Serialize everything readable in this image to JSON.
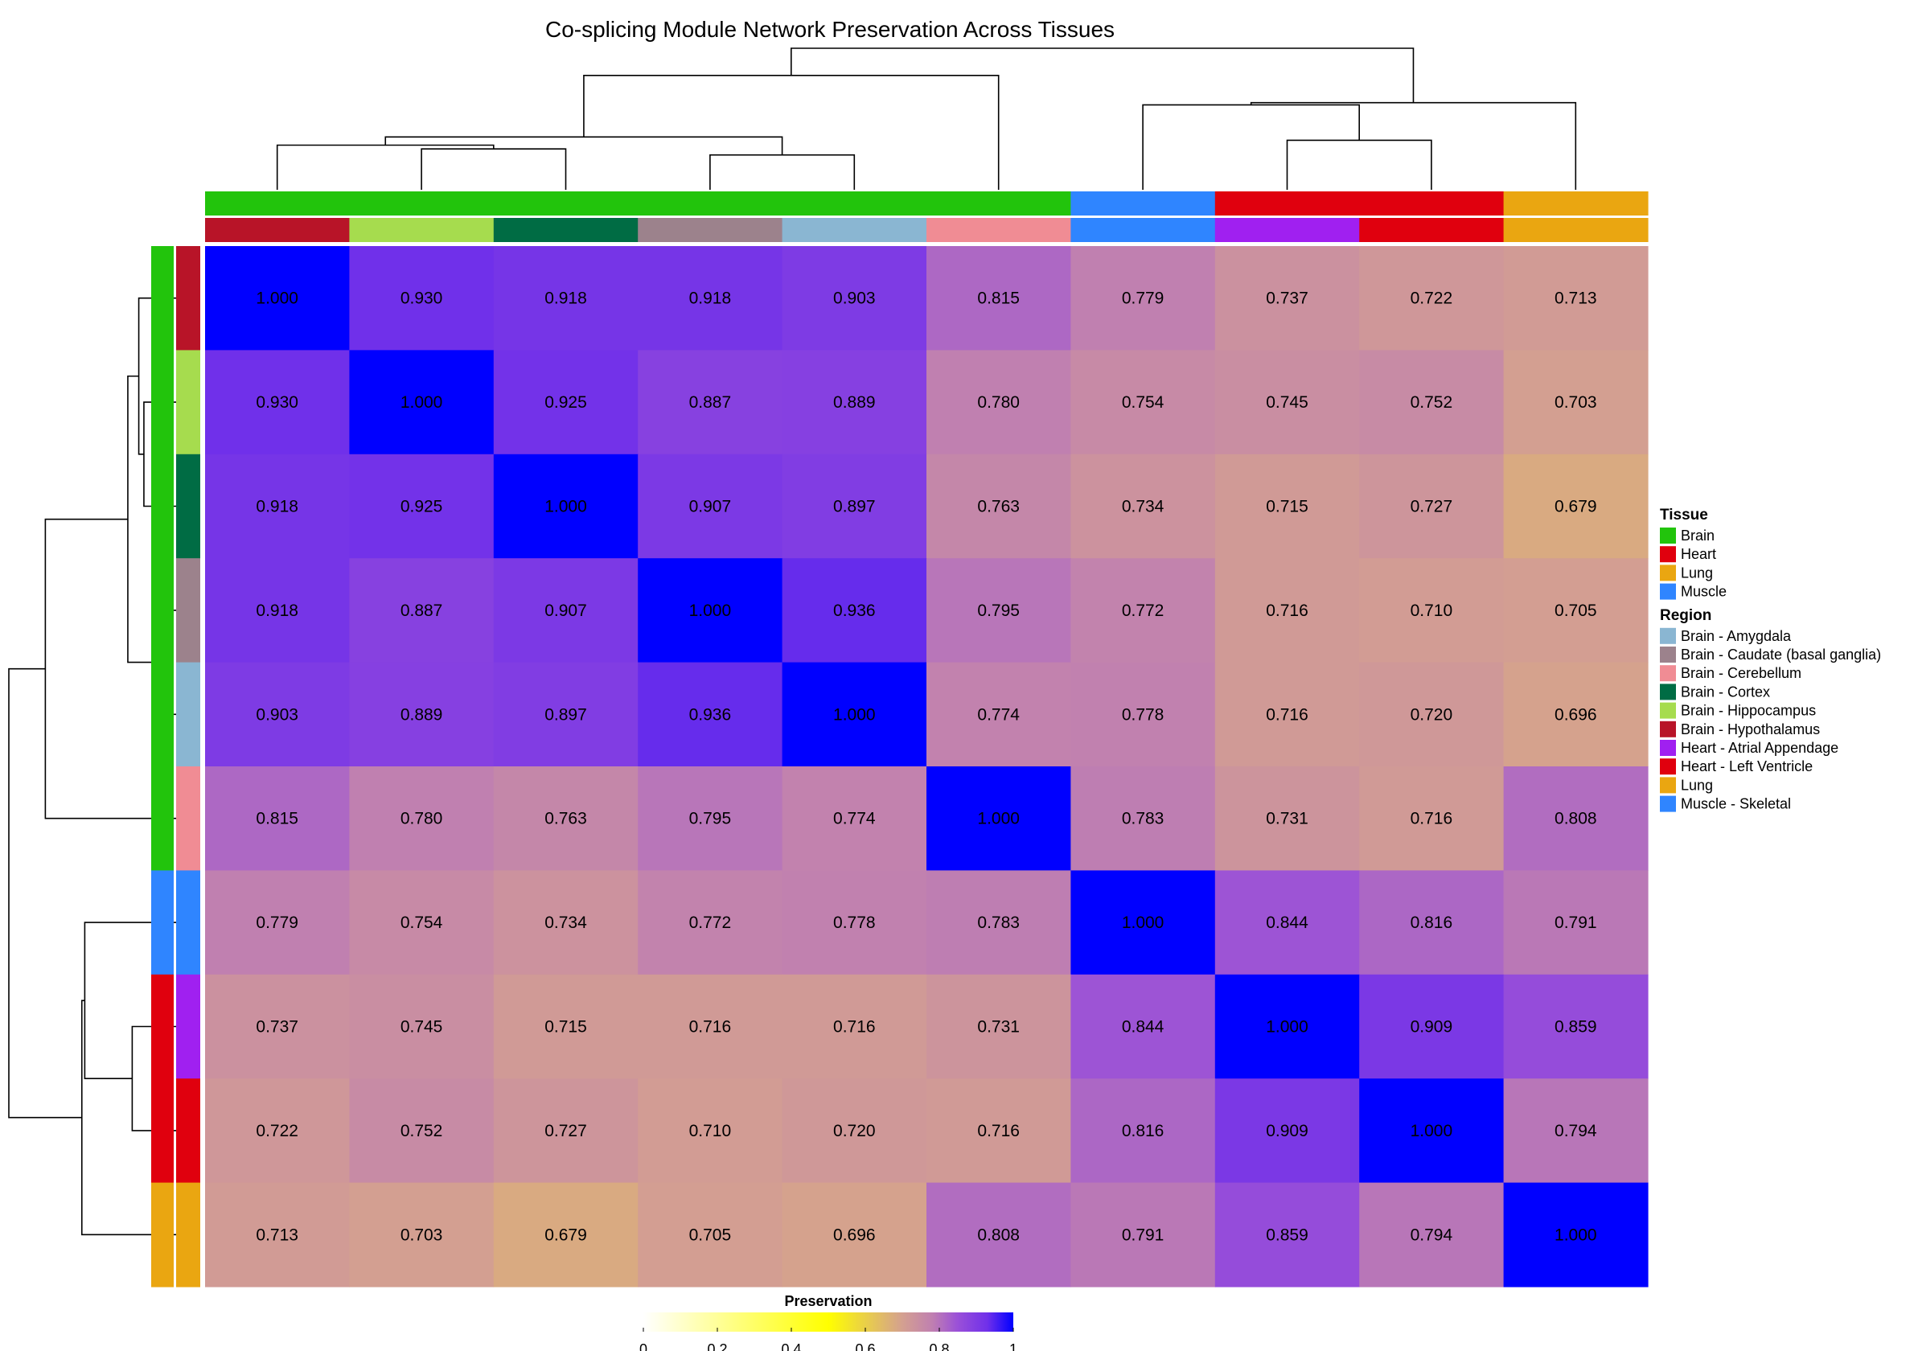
{
  "chart_data": {
    "type": "heatmap",
    "title": "Co-splicing Module Network Preservation Across Tissues",
    "row_labels": [
      "Brain - Hypothalamus",
      "Brain - Hippocampus",
      "Brain - Cortex",
      "Brain - Caudate (basal ganglia)",
      "Brain - Amygdala",
      "Brain - Cerebellum",
      "Muscle - Skeletal",
      "Heart - Atrial Appendage",
      "Heart - Left Ventricle",
      "Lung"
    ],
    "col_labels": [
      "Brain - Hypothalamus",
      "Brain - Hippocampus",
      "Brain - Cortex",
      "Brain - Caudate (basal ganglia)",
      "Brain - Amygdala",
      "Brain - Cerebellum",
      "Muscle - Skeletal",
      "Heart - Atrial Appendage",
      "Heart - Left Ventricle",
      "Lung"
    ],
    "row_tissue": [
      "Brain",
      "Brain",
      "Brain",
      "Brain",
      "Brain",
      "Brain",
      "Muscle",
      "Heart",
      "Heart",
      "Lung"
    ],
    "col_tissue": [
      "Brain",
      "Brain",
      "Brain",
      "Brain",
      "Brain",
      "Brain",
      "Muscle",
      "Heart",
      "Heart",
      "Lung"
    ],
    "values": [
      [
        1.0,
        0.93,
        0.918,
        0.918,
        0.903,
        0.815,
        0.779,
        0.737,
        0.722,
        0.713
      ],
      [
        0.93,
        1.0,
        0.925,
        0.887,
        0.889,
        0.78,
        0.754,
        0.745,
        0.752,
        0.703
      ],
      [
        0.918,
        0.925,
        1.0,
        0.907,
        0.897,
        0.763,
        0.734,
        0.715,
        0.727,
        0.679
      ],
      [
        0.918,
        0.887,
        0.907,
        1.0,
        0.936,
        0.795,
        0.772,
        0.716,
        0.71,
        0.705
      ],
      [
        0.903,
        0.889,
        0.897,
        0.936,
        1.0,
        0.774,
        0.778,
        0.716,
        0.72,
        0.696
      ],
      [
        0.815,
        0.78,
        0.763,
        0.795,
        0.774,
        1.0,
        0.783,
        0.731,
        0.716,
        0.808
      ],
      [
        0.779,
        0.754,
        0.734,
        0.772,
        0.778,
        0.783,
        1.0,
        0.844,
        0.816,
        0.791
      ],
      [
        0.737,
        0.745,
        0.715,
        0.716,
        0.716,
        0.731,
        0.844,
        1.0,
        0.909,
        0.859
      ],
      [
        0.722,
        0.752,
        0.727,
        0.71,
        0.72,
        0.716,
        0.816,
        0.909,
        1.0,
        0.794
      ],
      [
        0.713,
        0.703,
        0.679,
        0.705,
        0.696,
        0.808,
        0.791,
        0.859,
        0.794,
        1.0
      ]
    ],
    "color_scale": {
      "title": "Preservation",
      "range": [
        0,
        1
      ],
      "ticks": [
        "0",
        "0.2",
        "0.4",
        "0.6",
        "0.8",
        "1"
      ],
      "stops": [
        {
          "value": 0.0,
          "color": "#ffffff"
        },
        {
          "value": 0.5,
          "color": "#ffff00"
        },
        {
          "value": 0.7,
          "color": "#d4a090"
        },
        {
          "value": 0.78,
          "color": "#c080b0"
        },
        {
          "value": 0.85,
          "color": "#9a50d8"
        },
        {
          "value": 0.93,
          "color": "#7030ea"
        },
        {
          "value": 1.0,
          "color": "#0000ff"
        }
      ]
    },
    "legend": {
      "placement": "right",
      "tissue": {
        "title": "Tissue",
        "items": [
          {
            "label": "Brain",
            "color": "#22c40c"
          },
          {
            "label": "Heart",
            "color": "#e0000e"
          },
          {
            "label": "Lung",
            "color": "#eaa611"
          },
          {
            "label": "Muscle",
            "color": "#2f85ff"
          }
        ]
      },
      "region": {
        "title": "Region",
        "items": [
          {
            "label": "Brain - Amygdala",
            "color": "#8ab6d2"
          },
          {
            "label": "Brain - Caudate (basal ganglia)",
            "color": "#9c828c"
          },
          {
            "label": "Brain - Cerebellum",
            "color": "#f08c94"
          },
          {
            "label": "Brain - Cortex",
            "color": "#006c44"
          },
          {
            "label": "Brain - Hippocampus",
            "color": "#a6dc4e"
          },
          {
            "label": "Brain - Hypothalamus",
            "color": "#b81428"
          },
          {
            "label": "Heart - Atrial Appendage",
            "color": "#a020f0"
          },
          {
            "label": "Heart - Left Ventricle",
            "color": "#e0000e"
          },
          {
            "label": "Lung",
            "color": "#eaa611"
          },
          {
            "label": "Muscle - Skeletal",
            "color": "#2f85ff"
          }
        ]
      }
    },
    "dendrogram": {
      "merges": [
        [
          -4,
          -5,
          0.064
        ],
        [
          -2,
          -3,
          0.075
        ],
        [
          -1,
          2,
          0.082
        ],
        [
          1,
          3,
          0.097
        ],
        [
          -8,
          -9,
          0.091
        ],
        [
          -7,
          5,
          0.156
        ],
        [
          -10,
          6,
          0.16
        ],
        [
          -6,
          4,
          0.21
        ],
        [
          7,
          8,
          0.26
        ]
      ]
    }
  }
}
